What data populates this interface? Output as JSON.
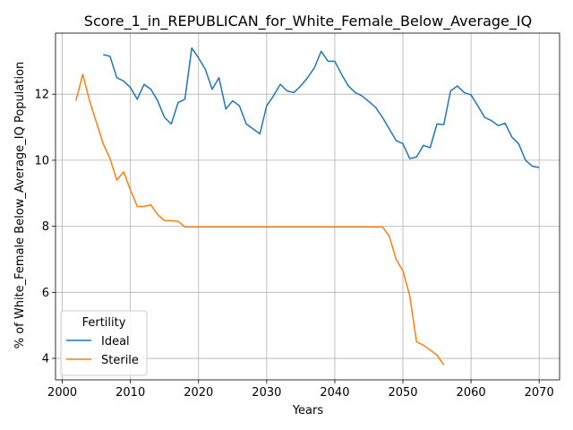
{
  "chart_data": {
    "type": "line",
    "title": "Score_1_in_REPUBLICAN_for_White_Female_Below_Average_IQ",
    "xlabel": "Years",
    "ylabel": "% of White_Female Below_Average_IQ Population",
    "xlim": [
      1999,
      2073
    ],
    "ylim": [
      3.35,
      13.85
    ],
    "xticks": [
      2000,
      2010,
      2020,
      2030,
      2040,
      2050,
      2060,
      2070
    ],
    "yticks": [
      4,
      6,
      8,
      10,
      12
    ],
    "grid": true,
    "legend": {
      "title": "Fertility",
      "placement": "lower-left"
    },
    "series": [
      {
        "name": "Ideal",
        "color": "#1f77b4",
        "x": [
          2006,
          2007,
          2008,
          2009,
          2010,
          2011,
          2012,
          2013,
          2014,
          2015,
          2016,
          2017,
          2018,
          2019,
          2020,
          2021,
          2022,
          2023,
          2024,
          2025,
          2026,
          2027,
          2028,
          2029,
          2030,
          2031,
          2032,
          2033,
          2034,
          2035,
          2036,
          2037,
          2038,
          2039,
          2040,
          2041,
          2042,
          2043,
          2044,
          2045,
          2046,
          2047,
          2048,
          2049,
          2050,
          2051,
          2052,
          2053,
          2054,
          2055,
          2056,
          2057,
          2058,
          2059,
          2060,
          2061,
          2062,
          2063,
          2064,
          2065,
          2066,
          2067,
          2068,
          2069,
          2070
        ],
        "y": [
          13.2,
          13.15,
          12.5,
          12.4,
          12.2,
          11.85,
          12.3,
          12.15,
          11.8,
          11.3,
          11.1,
          11.75,
          11.85,
          13.4,
          13.1,
          12.75,
          12.15,
          12.5,
          11.55,
          11.8,
          11.65,
          11.1,
          10.95,
          10.8,
          11.65,
          11.95,
          12.3,
          12.1,
          12.05,
          12.25,
          12.5,
          12.8,
          13.3,
          13.0,
          13.0,
          12.6,
          12.25,
          12.05,
          11.95,
          11.78,
          11.6,
          11.3,
          10.95,
          10.6,
          10.5,
          10.05,
          10.1,
          10.45,
          10.38,
          11.1,
          11.08,
          12.1,
          12.25,
          12.05,
          11.98,
          11.65,
          11.3,
          11.2,
          11.05,
          11.12,
          10.7,
          10.5,
          10.0,
          9.82,
          9.78
        ]
      },
      {
        "name": "Sterile",
        "color": "#ff7f0e",
        "x": [
          2002,
          2003,
          2004,
          2005,
          2006,
          2007,
          2008,
          2009,
          2010,
          2011,
          2012,
          2013,
          2014,
          2015,
          2016,
          2017,
          2018,
          2019,
          2020,
          2021,
          2022,
          2023,
          2024,
          2025,
          2026,
          2027,
          2028,
          2029,
          2030,
          2031,
          2032,
          2033,
          2034,
          2035,
          2036,
          2037,
          2038,
          2039,
          2040,
          2041,
          2042,
          2043,
          2044,
          2045,
          2046,
          2047,
          2048,
          2049,
          2050,
          2051,
          2052,
          2053,
          2054,
          2055,
          2056
        ],
        "y": [
          11.8,
          12.6,
          11.8,
          11.15,
          10.5,
          10.05,
          9.4,
          9.65,
          9.1,
          8.6,
          8.6,
          8.65,
          8.35,
          8.17,
          8.17,
          8.15,
          7.98,
          7.98,
          7.98,
          7.98,
          7.98,
          7.98,
          7.98,
          7.98,
          7.98,
          7.98,
          7.98,
          7.98,
          7.98,
          7.98,
          7.98,
          7.98,
          7.98,
          7.98,
          7.98,
          7.98,
          7.98,
          7.98,
          7.98,
          7.98,
          7.98,
          7.98,
          7.98,
          7.98,
          7.98,
          7.98,
          7.7,
          7.0,
          6.65,
          5.9,
          4.5,
          4.4,
          4.25,
          4.1,
          3.8
        ]
      }
    ]
  }
}
